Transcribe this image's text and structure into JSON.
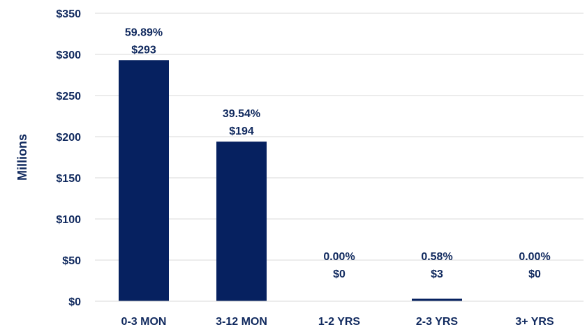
{
  "chart_data": {
    "type": "bar",
    "ylabel": "Millions",
    "ylim": [
      0,
      350
    ],
    "ytick_step": 50,
    "ytick_labels": [
      "$0",
      "$50",
      "$100",
      "$150",
      "$200",
      "$250",
      "$300",
      "$350"
    ],
    "categories": [
      "0-3 MON",
      "3-12 MON",
      "1-2 YRS",
      "2-3 YRS",
      "3+ YRS"
    ],
    "values": [
      293,
      194,
      0,
      3,
      0
    ],
    "value_labels": [
      "$293",
      "$194",
      "$0",
      "$3",
      "$0"
    ],
    "percent_labels": [
      "59.89%",
      "39.54%",
      "0.00%",
      "0.58%",
      "0.00%"
    ],
    "grid": true,
    "legend": "none"
  },
  "colors": {
    "bar": "#062160",
    "text": "#10295e",
    "grid": "#d9d9d9"
  }
}
